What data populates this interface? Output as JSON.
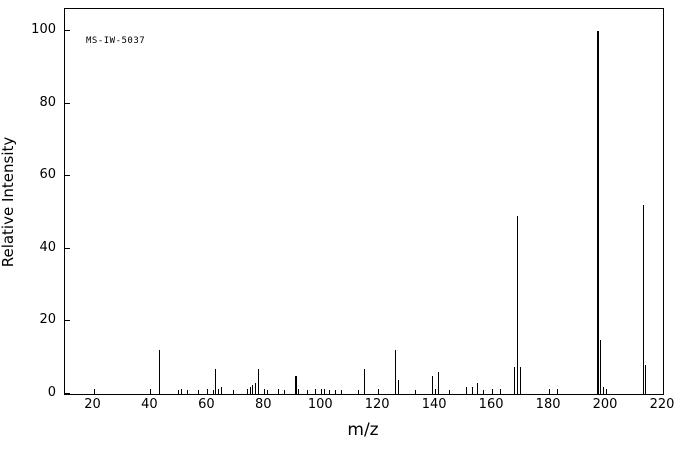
{
  "chart_data": {
    "type": "bar",
    "subtype": "mass-spectrum-stick-plot",
    "title": "",
    "annotation": "MS-IW-5037",
    "xlabel": "m/z",
    "ylabel": "Relative Intensity",
    "xlim": [
      10,
      220
    ],
    "ylim": [
      0,
      100
    ],
    "x_ticks": [
      20,
      40,
      60,
      80,
      100,
      120,
      140,
      160,
      180,
      200,
      220
    ],
    "y_ticks": [
      0,
      20,
      40,
      60,
      80,
      100
    ],
    "grid": false,
    "legend": false,
    "peaks": [
      [
        43,
        12
      ],
      [
        50,
        1
      ],
      [
        51,
        1.5
      ],
      [
        53,
        1
      ],
      [
        57,
        1
      ],
      [
        62,
        1
      ],
      [
        63,
        7
      ],
      [
        64,
        1.5
      ],
      [
        65,
        2
      ],
      [
        69,
        1
      ],
      [
        74,
        1.5
      ],
      [
        75,
        2
      ],
      [
        76,
        2.5
      ],
      [
        77,
        3
      ],
      [
        78,
        7
      ],
      [
        81,
        1
      ],
      [
        85,
        1.5
      ],
      [
        87,
        1
      ],
      [
        91,
        5
      ],
      [
        92,
        1.5
      ],
      [
        95,
        1
      ],
      [
        98,
        1.5
      ],
      [
        101,
        1.5
      ],
      [
        103,
        1
      ],
      [
        105,
        1
      ],
      [
        107,
        1
      ],
      [
        113,
        1
      ],
      [
        115,
        7
      ],
      [
        120,
        1.5
      ],
      [
        126,
        12
      ],
      [
        127,
        4
      ],
      [
        133,
        1
      ],
      [
        139,
        5
      ],
      [
        140,
        1.5
      ],
      [
        141,
        6
      ],
      [
        145,
        1
      ],
      [
        151,
        2
      ],
      [
        153,
        2
      ],
      [
        155,
        3
      ],
      [
        157,
        1
      ],
      [
        163,
        1.5
      ],
      [
        168,
        7.5
      ],
      [
        169,
        49
      ],
      [
        170,
        7.5
      ],
      [
        183,
        1.5
      ],
      [
        197,
        100
      ],
      [
        198,
        15
      ],
      [
        199,
        2
      ],
      [
        213,
        52
      ],
      [
        214,
        8
      ]
    ],
    "wide_peaks": [
      91,
      197
    ]
  }
}
